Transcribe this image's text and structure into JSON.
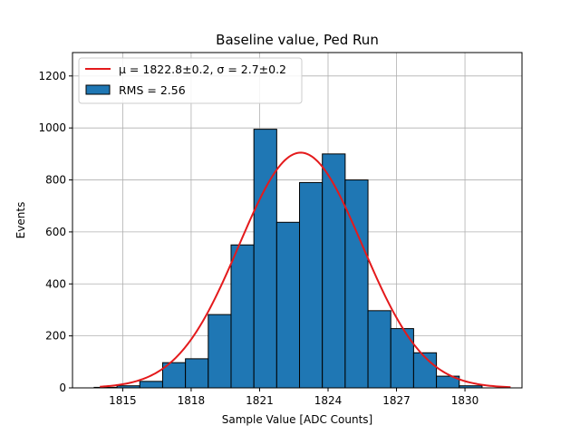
{
  "chart_data": {
    "type": "bar",
    "title": "Baseline value, Ped Run",
    "xlabel": "Sample Value [ADC Counts]",
    "ylabel": "Events",
    "xlim": [
      1812.8,
      1832.5
    ],
    "ylim": [
      0,
      1290
    ],
    "grid": true,
    "legend_placement": "top-left",
    "x_ticks": [
      1815,
      1818,
      1821,
      1824,
      1827,
      1830
    ],
    "y_ticks": [
      0,
      200,
      400,
      600,
      800,
      1000,
      1200
    ],
    "bin_edges": [
      1813.75,
      1814.75,
      1815.75,
      1816.75,
      1817.75,
      1818.75,
      1819.75,
      1820.75,
      1821.75,
      1822.75,
      1823.75,
      1824.75,
      1825.75,
      1826.75,
      1827.75,
      1828.75,
      1829.75,
      1830.75
    ],
    "values": [
      2,
      8,
      25,
      97,
      112,
      282,
      550,
      995,
      637,
      790,
      900,
      800,
      297,
      228,
      135,
      45,
      8
    ],
    "bar_color": "#1f77b4",
    "fit": {
      "mu": 1822.8,
      "sigma": 2.7,
      "amplitude": 905,
      "x_range": [
        1814.0,
        1832.0
      ],
      "color": "#e41a1c"
    },
    "legend": [
      {
        "label_prefix": "μ = 1822.8±0.2, ",
        "label_suffix": "σ = 2.7±0.2",
        "kind": "line",
        "color": "#e41a1c"
      },
      {
        "label": "RMS = 2.56",
        "kind": "patch",
        "color": "#1f77b4"
      }
    ]
  }
}
